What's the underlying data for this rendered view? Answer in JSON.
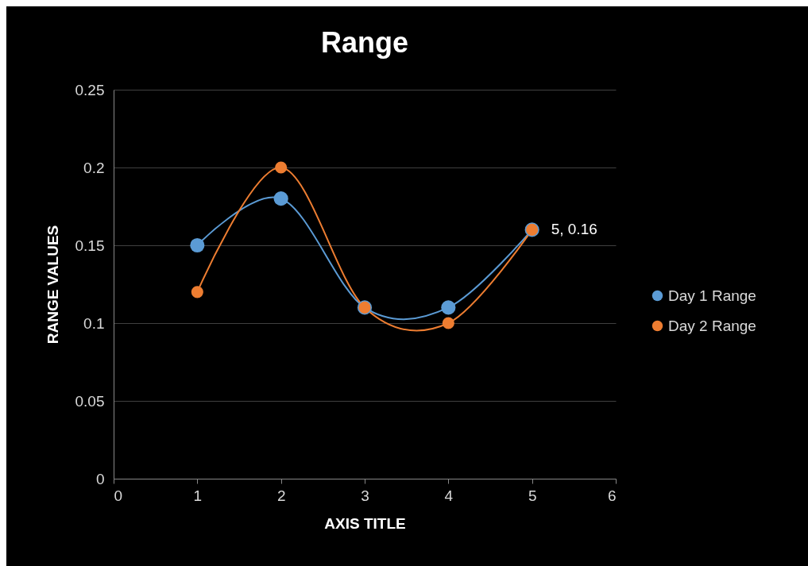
{
  "chart_data": {
    "type": "line",
    "title": "Range",
    "xlabel": "AXIS TITLE",
    "ylabel": "RANGE VALUES",
    "x": [
      1,
      2,
      3,
      4,
      5
    ],
    "series": [
      {
        "name": "Day 1 Range",
        "color": "#5b9bd5",
        "values": [
          0.15,
          0.18,
          0.11,
          0.11,
          0.16
        ]
      },
      {
        "name": "Day 2 Range",
        "color": "#ed7d31",
        "values": [
          0.12,
          0.2,
          0.11,
          0.1,
          0.16
        ]
      }
    ],
    "xlim": [
      0,
      6
    ],
    "xticks": [
      0,
      1,
      2,
      3,
      4,
      5,
      6
    ],
    "ylim": [
      0,
      0.25
    ],
    "yticks": [
      0,
      0.05,
      0.1,
      0.15,
      0.2,
      0.25
    ],
    "grid": "y",
    "legend": "right",
    "marker": "circle",
    "line_style": "solid",
    "annotations": [
      {
        "text": "5, 0.16",
        "x": 5,
        "y": 0.16
      }
    ]
  }
}
